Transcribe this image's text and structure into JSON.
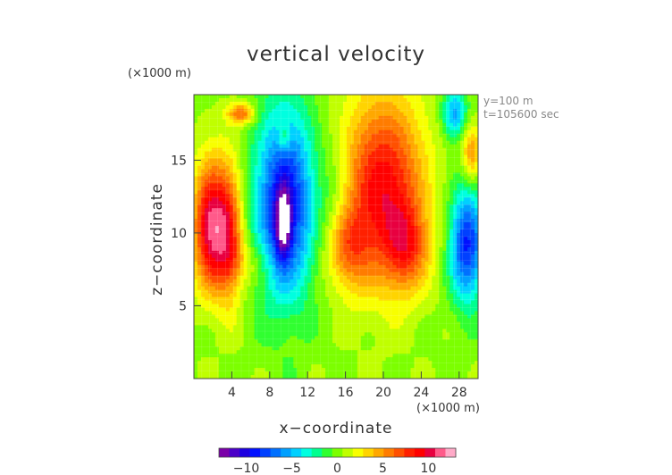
{
  "chart_data": {
    "type": "heatmap",
    "title": "vertical velocity",
    "xlabel": "x−coordinate",
    "ylabel": "z−coordinate",
    "x_unit": "(×1000 m)",
    "z_unit": "(×1000 m)",
    "annotations": [
      "y=100  m",
      "t=105600 sec"
    ],
    "xlim": [
      0,
      30
    ],
    "zlim": [
      0,
      19.5
    ],
    "x_ticks": [
      4,
      8,
      12,
      16,
      20,
      24,
      28
    ],
    "x_tick_labels": [
      "4",
      "8",
      "12",
      "16",
      "20",
      "24",
      "28"
    ],
    "z_ticks": [
      5,
      10,
      15
    ],
    "z_tick_labels": [
      "5",
      "10",
      "15"
    ],
    "colorbar": {
      "range": [
        -13,
        13
      ],
      "tick_values": [
        -10,
        -5,
        0,
        5,
        10
      ],
      "tick_labels": [
        "−10",
        "−5",
        "0",
        "5",
        "10"
      ],
      "colors": [
        "#7a00a8",
        "#4b00c8",
        "#1d00e0",
        "#0010ff",
        "#0040ff",
        "#0070ff",
        "#00a0ff",
        "#00d0ff",
        "#00ffe0",
        "#00ff90",
        "#30ff30",
        "#7cff00",
        "#c0ff00",
        "#f8ff00",
        "#ffd400",
        "#ffa800",
        "#ff7c00",
        "#ff5000",
        "#ff2000",
        "#ff0000",
        "#e80040",
        "#ff5a8a",
        "#ffaac8"
      ]
    },
    "features": [
      {
        "x": 1.8,
        "z": 10.5,
        "sx": 1.3,
        "sz": 3.0,
        "value": 10.5
      },
      {
        "x": 3.8,
        "z": 10.0,
        "sx": 1.0,
        "sz": 3.4,
        "value": 6
      },
      {
        "x": 9.6,
        "z": 12.0,
        "sx": 2.2,
        "sz": 4.6,
        "value": -10
      },
      {
        "x": 9.4,
        "z": 10.6,
        "sx": 0.6,
        "sz": 1.7,
        "value": -7
      },
      {
        "x": 20.0,
        "z": 13.0,
        "sx": 3.0,
        "sz": 4.5,
        "value": 9
      },
      {
        "x": 22.5,
        "z": 9.0,
        "sx": 1.6,
        "sz": 2.0,
        "value": 5
      },
      {
        "x": 16.0,
        "z": 9.0,
        "sx": 1.6,
        "sz": 2.0,
        "value": 5
      },
      {
        "x": 28.8,
        "z": 9.2,
        "sx": 1.3,
        "sz": 2.8,
        "value": -9
      },
      {
        "x": 27.5,
        "z": 18.2,
        "sx": 0.9,
        "sz": 1.2,
        "value": -6
      },
      {
        "x": 5.0,
        "z": 18.2,
        "sx": 1.0,
        "sz": 0.5,
        "value": 6
      },
      {
        "x": 29.3,
        "z": 15.5,
        "sx": 0.7,
        "sz": 1.4,
        "value": 5
      },
      {
        "x": 9.5,
        "z": 16.5,
        "sx": 0.5,
        "sz": 0.7,
        "value": 3
      },
      {
        "x": 15.0,
        "z": 11.5,
        "sx": 1.2,
        "sz": 3.0,
        "value": -2
      },
      {
        "x": 5.5,
        "z": 8.0,
        "sx": 2.0,
        "sz": 1.2,
        "value": 2
      }
    ]
  }
}
